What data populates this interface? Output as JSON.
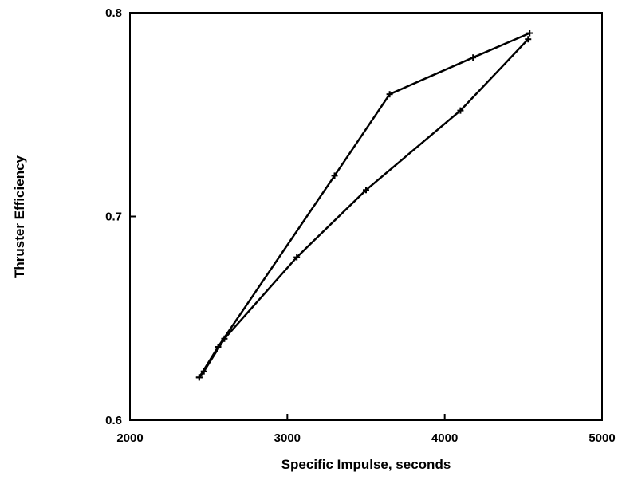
{
  "chart_data": {
    "type": "line",
    "title": "",
    "xlabel": "Specific Impulse, seconds",
    "ylabel": "Thruster Efficiency",
    "xlim": [
      2000,
      5000
    ],
    "ylim": [
      0.6,
      0.8
    ],
    "x_ticks": [
      2000,
      3000,
      4000,
      5000
    ],
    "x_tick_labels": [
      "2000",
      "3000",
      "4000",
      "5000"
    ],
    "y_ticks": [
      0.6,
      0.7,
      0.8
    ],
    "y_tick_labels": [
      "0.6",
      "0.7",
      "0.8"
    ],
    "grid": false,
    "legend": "none",
    "series": [
      {
        "x": [
          2440,
          2560,
          3300,
          3650,
          4180,
          4540
        ],
        "y": [
          0.621,
          0.636,
          0.72,
          0.76,
          0.778,
          0.79
        ]
      },
      {
        "x": [
          2440,
          2470,
          2600,
          3060,
          3500,
          4100,
          4530
        ],
        "y": [
          0.621,
          0.624,
          0.64,
          0.68,
          0.713,
          0.752,
          0.787
        ]
      }
    ]
  }
}
